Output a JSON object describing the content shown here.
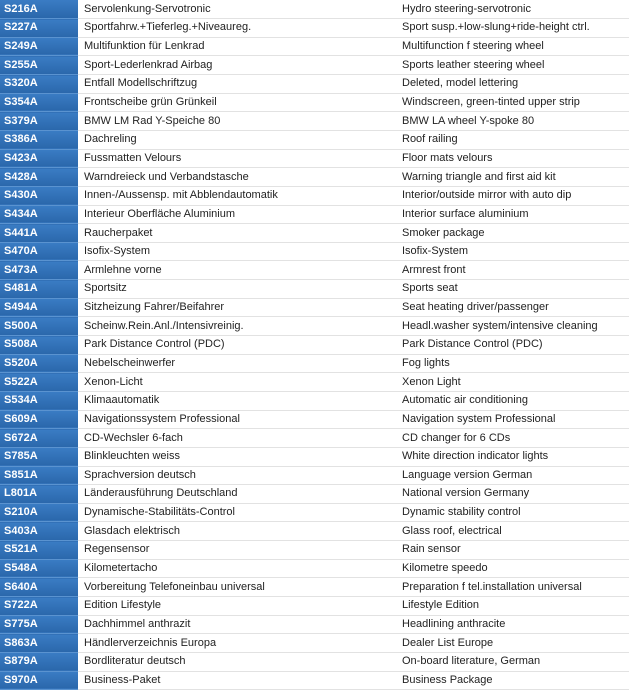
{
  "table": {
    "rows": [
      [
        "S216A",
        "Servolenkung-Servotronic",
        "Hydro steering-servotronic"
      ],
      [
        "S227A",
        "Sportfahrw.+Tieferleg.+Niveaureg.",
        "Sport susp.+low-slung+ride-height ctrl."
      ],
      [
        "S249A",
        "Multifunktion für Lenkrad",
        "Multifunction f steering wheel"
      ],
      [
        "S255A",
        "Sport-Lederlenkrad Airbag",
        "Sports leather steering wheel"
      ],
      [
        "S320A",
        "Entfall Modellschriftzug",
        "Deleted, model lettering"
      ],
      [
        "S354A",
        "Frontscheibe grün Grünkeil",
        "Windscreen, green-tinted upper strip"
      ],
      [
        "S379A",
        "BMW LM Rad Y-Speiche 80",
        "BMW LA wheel Y-spoke 80"
      ],
      [
        "S386A",
        "Dachreling",
        "Roof railing"
      ],
      [
        "S423A",
        "Fussmatten Velours",
        "Floor mats velours"
      ],
      [
        "S428A",
        "Warndreieck und Verbandstasche",
        "Warning triangle and first aid kit"
      ],
      [
        "S430A",
        "Innen-/Aussensp. mit Abblendautomatik",
        "Interior/outside mirror with auto dip"
      ],
      [
        "S434A",
        "Interieur Oberfläche Aluminium",
        "Interior surface aluminium"
      ],
      [
        "S441A",
        "Raucherpaket",
        "Smoker package"
      ],
      [
        "S470A",
        "Isofix-System",
        "Isofix-System"
      ],
      [
        "S473A",
        "Armlehne vorne",
        "Armrest front"
      ],
      [
        "S481A",
        "Sportsitz",
        "Sports seat"
      ],
      [
        "S494A",
        "Sitzheizung Fahrer/Beifahrer",
        "Seat heating driver/passenger"
      ],
      [
        "S500A",
        "Scheinw.Rein.Anl./Intensivreinig.",
        "Headl.washer system/intensive cleaning"
      ],
      [
        "S508A",
        "Park Distance Control (PDC)",
        "Park Distance Control (PDC)"
      ],
      [
        "S520A",
        "Nebelscheinwerfer",
        "Fog lights"
      ],
      [
        "S522A",
        "Xenon-Licht",
        "Xenon Light"
      ],
      [
        "S534A",
        "Klimaautomatik",
        "Automatic air conditioning"
      ],
      [
        "S609A",
        "Navigationssystem Professional",
        "Navigation system Professional"
      ],
      [
        "S672A",
        "CD-Wechsler 6-fach",
        "CD changer for 6 CDs"
      ],
      [
        "S785A",
        "Blinkleuchten weiss",
        "White direction indicator lights"
      ],
      [
        "S851A",
        "Sprachversion deutsch",
        "Language version German"
      ],
      [
        "L801A",
        "Länderausführung Deutschland",
        "National version Germany"
      ],
      [
        "S210A",
        "Dynamische-Stabilitäts-Control",
        "Dynamic stability control"
      ],
      [
        "S403A",
        "Glasdach elektrisch",
        "Glass roof, electrical"
      ],
      [
        "S521A",
        "Regensensor",
        "Rain sensor"
      ],
      [
        "S548A",
        "Kilometertacho",
        "Kilometre speedo"
      ],
      [
        "S640A",
        "Vorbereitung Telefoneinbau universal",
        "Preparation f tel.installation universal"
      ],
      [
        "S722A",
        "Edition Lifestyle",
        "Lifestyle Edition"
      ],
      [
        "S775A",
        "Dachhimmel anthrazit",
        "Headlining anthracite"
      ],
      [
        "S863A",
        "Händlerverzeichnis Europa",
        "Dealer List Europe"
      ],
      [
        "S879A",
        "Bordliteratur deutsch",
        "On-board literature, German"
      ],
      [
        "S970A",
        "Business-Paket",
        "Business Package"
      ]
    ]
  }
}
